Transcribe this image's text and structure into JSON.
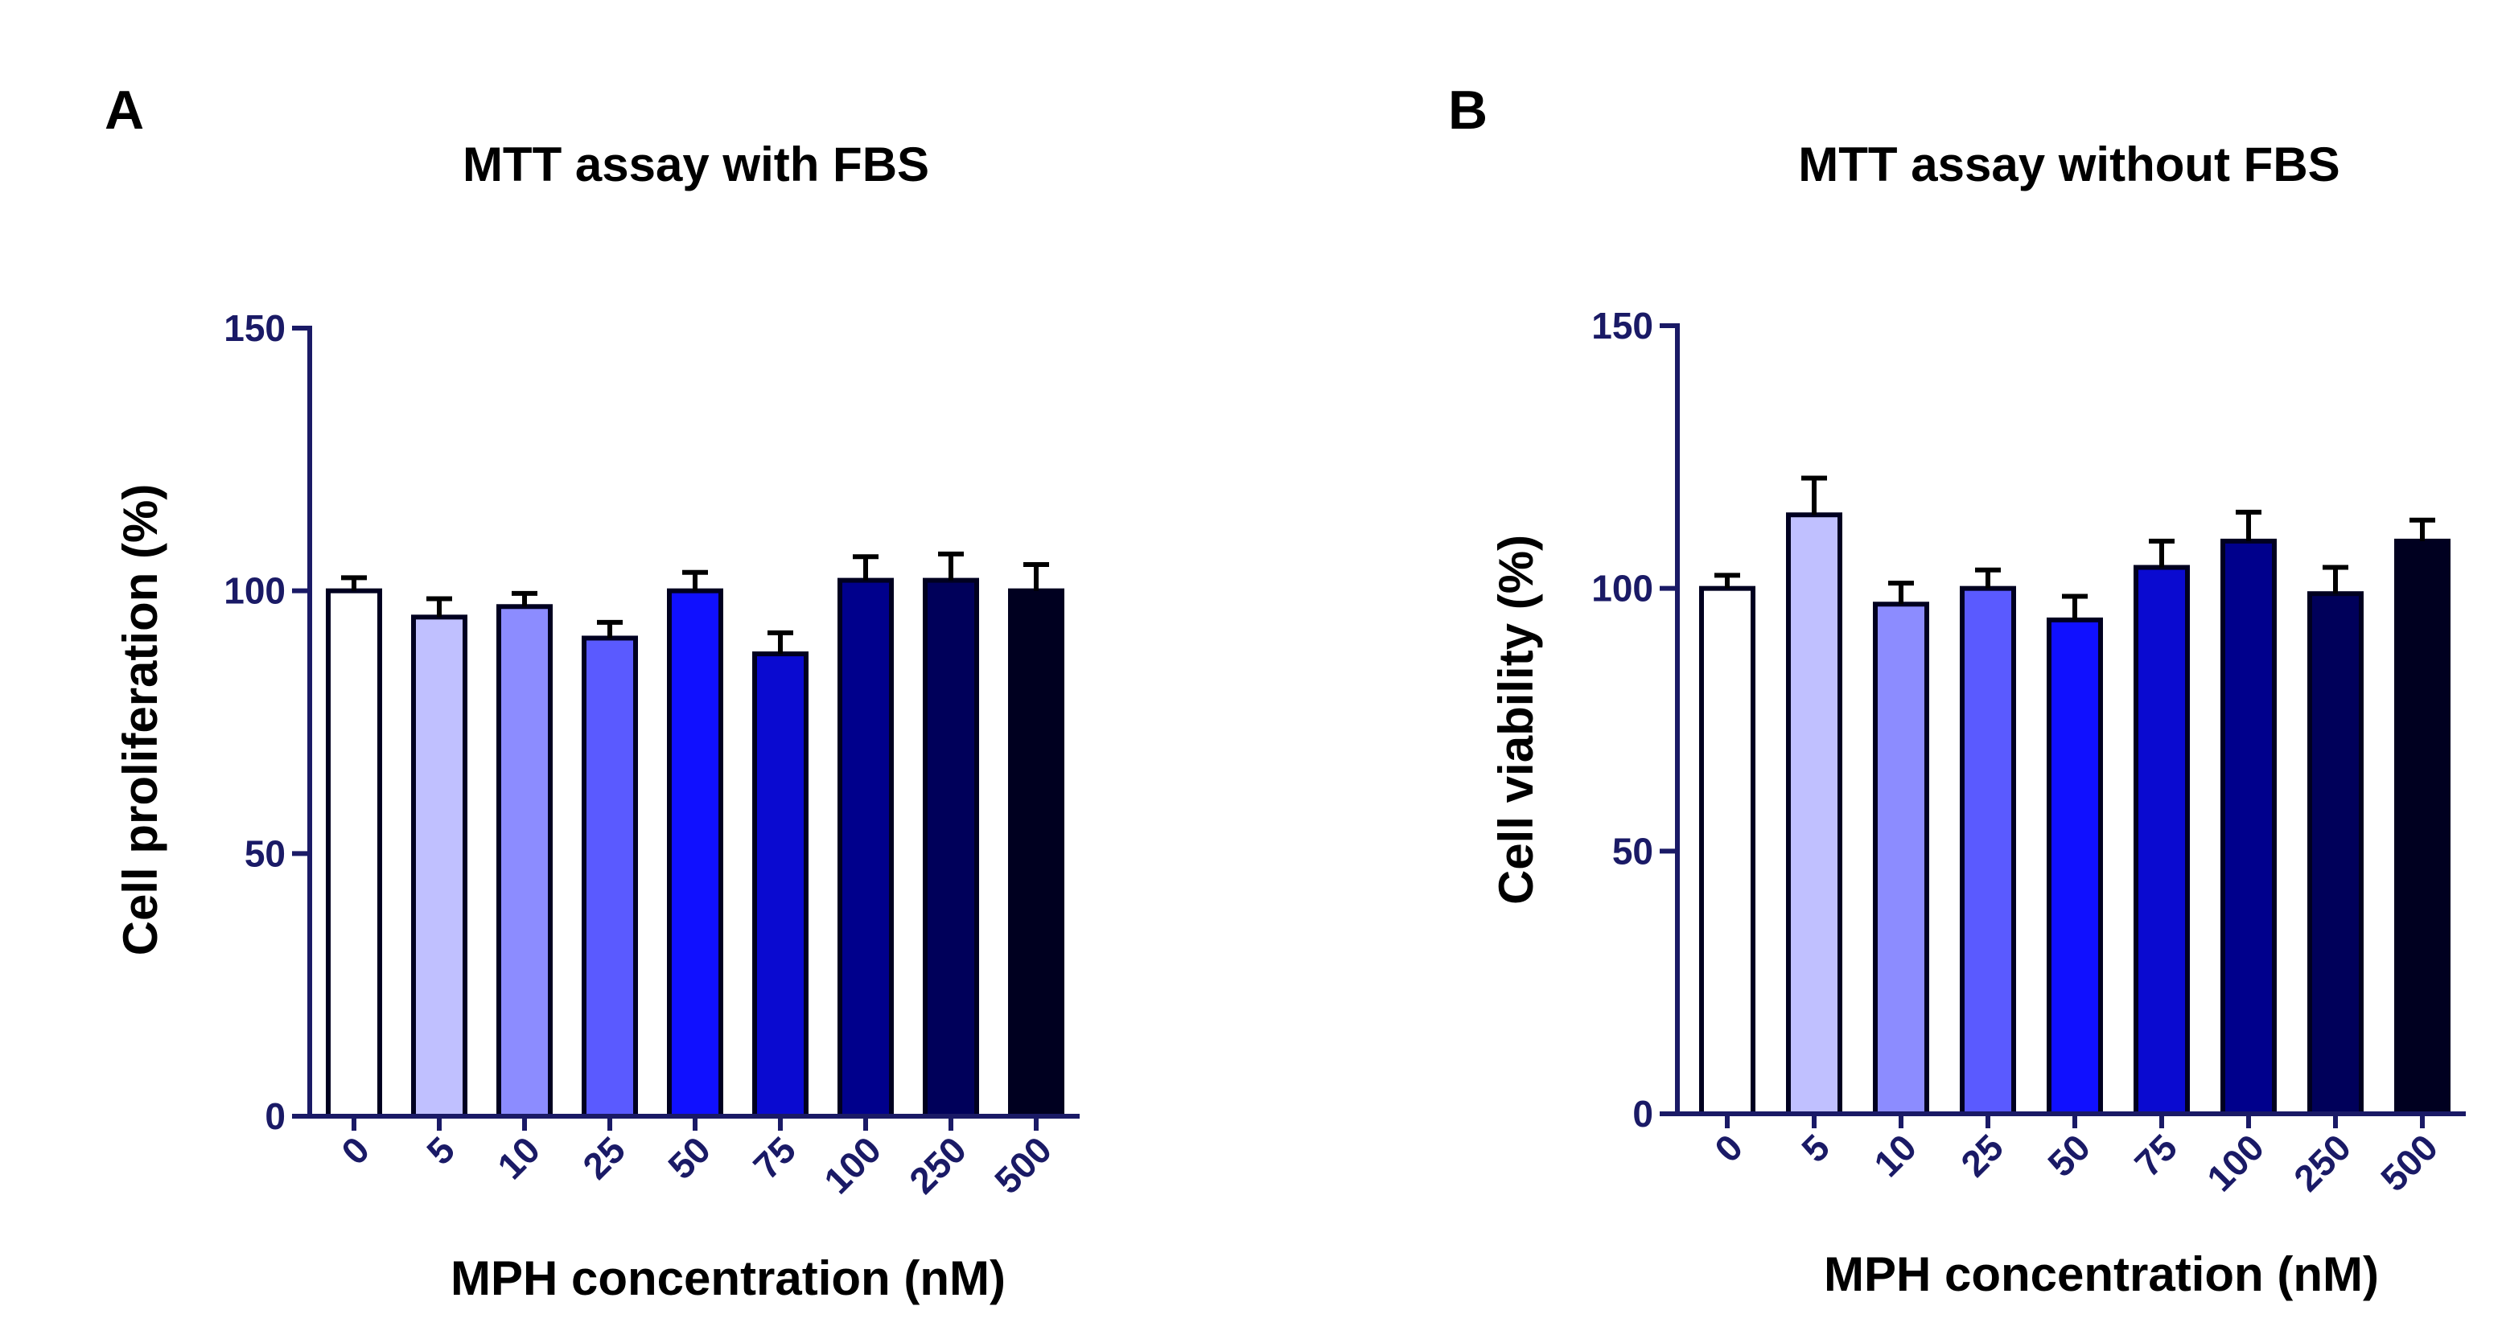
{
  "chart_data": [
    {
      "type": "bar",
      "panel": "A",
      "title": "MTT assay with FBS",
      "xlabel": "MPH concentration (nM)",
      "ylabel": "Cell proliferation (%)",
      "ylim": [
        0,
        150
      ],
      "yticks": [
        "0",
        "50",
        "100",
        "150"
      ],
      "categories": [
        "0",
        "5",
        "10",
        "25",
        "50",
        "75",
        "100",
        "250",
        "500"
      ],
      "values": [
        100,
        95,
        97,
        91,
        100,
        88,
        102,
        102,
        100
      ],
      "errors": [
        2.5,
        3.5,
        2.5,
        3,
        3.5,
        4,
        4.5,
        5,
        5
      ],
      "colors": [
        "#ffffff",
        "#c0c0ff",
        "#8c8cff",
        "#5a5aff",
        "#1010ff",
        "#0a0ad0",
        "#00008c",
        "#00005a",
        "#000020"
      ]
    },
    {
      "type": "bar",
      "panel": "B",
      "title": "MTT assay without FBS",
      "xlabel": "MPH concentration (nM)",
      "ylabel": "Cell viability (%)",
      "ylim": [
        0,
        150
      ],
      "yticks": [
        "0",
        "50",
        "100",
        "150"
      ],
      "categories": [
        "0",
        "5",
        "10",
        "25",
        "50",
        "75",
        "100",
        "250",
        "500"
      ],
      "values": [
        100,
        114,
        97,
        100,
        94,
        104,
        109,
        99,
        109
      ],
      "errors": [
        2.5,
        7,
        4,
        3.5,
        4.5,
        5,
        5.5,
        5,
        4
      ],
      "colors": [
        "#ffffff",
        "#c0c0ff",
        "#8c8cff",
        "#5a5aff",
        "#1010ff",
        "#0a0ad0",
        "#00008c",
        "#00005a",
        "#000020"
      ]
    }
  ]
}
